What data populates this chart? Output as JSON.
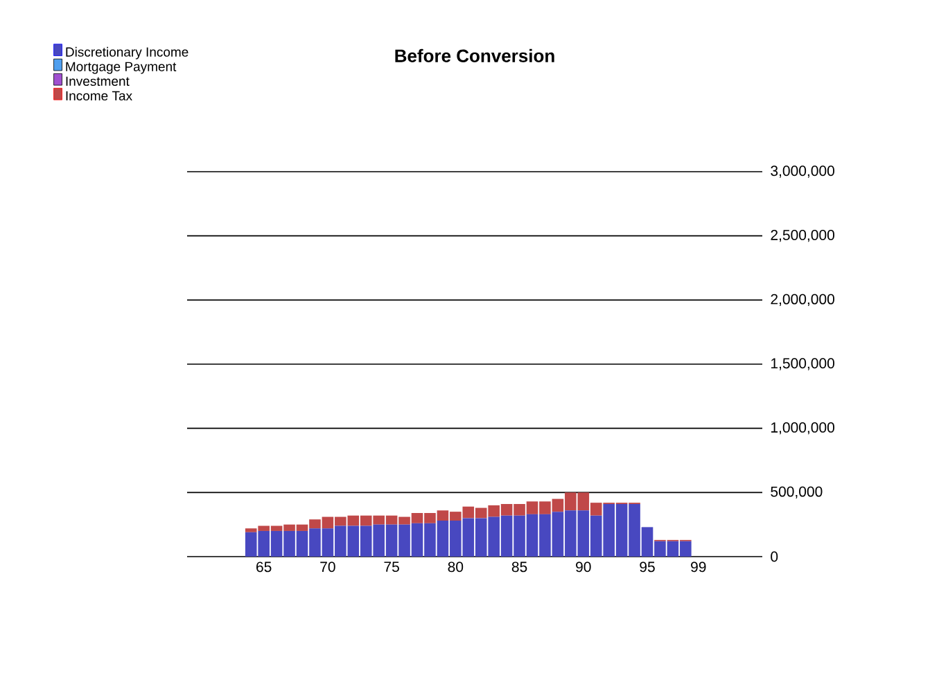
{
  "chart_data": {
    "type": "bar",
    "title": "Before Conversion",
    "stacked": true,
    "x": [
      64,
      65,
      66,
      67,
      68,
      69,
      70,
      71,
      72,
      73,
      74,
      75,
      76,
      77,
      78,
      79,
      80,
      81,
      82,
      83,
      84,
      85,
      86,
      87,
      88,
      89,
      90,
      91,
      92,
      93,
      94,
      95,
      96,
      97,
      98
    ],
    "series": [
      {
        "name": "Discretionary Income",
        "color": "#4848c0",
        "values": [
          190000,
          200000,
          200000,
          200000,
          200000,
          220000,
          220000,
          240000,
          240000,
          240000,
          250000,
          250000,
          250000,
          260000,
          260000,
          280000,
          280000,
          300000,
          300000,
          310000,
          320000,
          320000,
          330000,
          330000,
          350000,
          360000,
          360000,
          320000,
          410000,
          410000,
          410000,
          230000,
          120000,
          120000,
          120000
        ]
      },
      {
        "name": "Mortgage Payment",
        "color": "#4f9fef",
        "values": [
          null,
          null,
          null,
          null,
          null,
          null,
          null,
          null,
          null,
          null,
          null,
          null,
          null,
          null,
          null,
          null,
          null,
          null,
          null,
          null,
          null,
          null,
          null,
          null,
          null,
          null,
          null,
          null,
          null,
          null,
          null,
          null,
          null,
          null,
          null
        ]
      },
      {
        "name": "Investment",
        "color": "#a050d0",
        "values": [
          null,
          null,
          null,
          null,
          null,
          null,
          null,
          null,
          null,
          null,
          null,
          null,
          null,
          null,
          null,
          null,
          null,
          null,
          null,
          null,
          null,
          null,
          null,
          null,
          null,
          null,
          null,
          null,
          null,
          null,
          null,
          null,
          null,
          null,
          null
        ]
      },
      {
        "name": "Income Tax",
        "color": "#c04848",
        "values": [
          30000,
          40000,
          40000,
          50000,
          50000,
          70000,
          90000,
          70000,
          80000,
          80000,
          70000,
          70000,
          60000,
          80000,
          80000,
          80000,
          70000,
          90000,
          80000,
          90000,
          90000,
          90000,
          100000,
          100000,
          100000,
          140000,
          140000,
          100000,
          10000,
          10000,
          10000,
          0,
          10000,
          10000,
          10000
        ]
      }
    ],
    "xlim": [
      59,
      104
    ],
    "xticks": [
      65,
      70,
      75,
      80,
      85,
      90,
      95,
      99
    ],
    "ylim": [
      0,
      3000000
    ],
    "yticks": [
      {
        "value": 0,
        "label": "0"
      },
      {
        "value": 500000,
        "label": "500,000"
      },
      {
        "value": 1000000,
        "label": "1,000,000"
      },
      {
        "value": 1500000,
        "label": "1,500,000"
      },
      {
        "value": 2000000,
        "label": "2,000,000"
      },
      {
        "value": 2500000,
        "label": "2,500,000"
      },
      {
        "value": 3000000,
        "label": "3,000,000"
      }
    ],
    "grid": "y",
    "legend": "top left"
  }
}
